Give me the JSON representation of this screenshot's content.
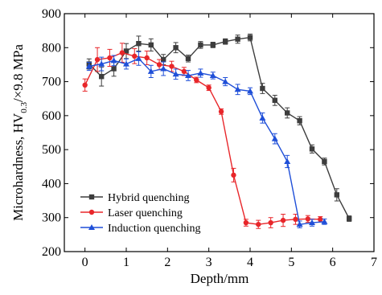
{
  "chart_data": {
    "type": "line",
    "title": "",
    "xlabel": "Depth/mm",
    "ylabel_main": "Microhardness, HV",
    "ylabel_sub": "0.3",
    "ylabel_tail": "/×9.8 MPa",
    "xlim": [
      -0.5,
      7
    ],
    "ylim": [
      200,
      900
    ],
    "xticks": [
      0,
      1,
      2,
      3,
      4,
      5,
      6,
      7
    ],
    "yticks": [
      200,
      300,
      400,
      500,
      600,
      700,
      800,
      900
    ],
    "grid": false,
    "legend_position": "bottom-left",
    "series": [
      {
        "name": "Hybrid quenching",
        "color": "#3d3d3d",
        "marker": "square",
        "x": [
          0.1,
          0.4,
          0.7,
          1.0,
          1.3,
          1.6,
          1.9,
          2.2,
          2.5,
          2.8,
          3.1,
          3.4,
          3.7,
          4.0,
          4.3,
          4.6,
          4.9,
          5.2,
          5.5,
          5.8,
          6.1,
          6.4
        ],
        "y": [
          752,
          715,
          738,
          790,
          812,
          808,
          765,
          800,
          768,
          808,
          808,
          818,
          825,
          830,
          680,
          645,
          608,
          585,
          502,
          465,
          367,
          297
        ],
        "err": [
          15,
          28,
          22,
          22,
          22,
          18,
          15,
          15,
          10,
          10,
          8,
          8,
          12,
          10,
          15,
          15,
          15,
          12,
          12,
          10,
          18,
          8
        ]
      },
      {
        "name": "Laser quenching",
        "color": "#e8262a",
        "marker": "circle",
        "x": [
          0.0,
          0.3,
          0.6,
          0.9,
          1.2,
          1.5,
          1.8,
          2.1,
          2.4,
          2.7,
          3.0,
          3.3,
          3.6,
          3.9,
          4.2,
          4.5,
          4.8,
          5.1,
          5.4,
          5.7
        ],
        "y": [
          690,
          765,
          770,
          785,
          775,
          770,
          750,
          745,
          730,
          705,
          682,
          612,
          425,
          285,
          280,
          285,
          292,
          295,
          296,
          295
        ],
        "err": [
          18,
          35,
          25,
          28,
          22,
          20,
          15,
          15,
          12,
          8,
          8,
          8,
          20,
          10,
          12,
          15,
          18,
          15,
          10,
          8
        ]
      },
      {
        "name": "Induction quenching",
        "color": "#1f4fd8",
        "marker": "triangle",
        "x": [
          0.1,
          0.4,
          0.7,
          1.0,
          1.3,
          1.6,
          1.9,
          2.2,
          2.5,
          2.8,
          3.1,
          3.4,
          3.7,
          4.0,
          4.3,
          4.6,
          4.9,
          5.2,
          5.5,
          5.8
        ],
        "y": [
          745,
          752,
          762,
          752,
          768,
          730,
          738,
          722,
          718,
          725,
          718,
          700,
          677,
          672,
          593,
          532,
          465,
          280,
          285,
          288
        ],
        "err": [
          12,
          20,
          15,
          15,
          20,
          18,
          20,
          15,
          15,
          12,
          10,
          12,
          15,
          10,
          15,
          15,
          18,
          10,
          10,
          8
        ]
      }
    ]
  }
}
